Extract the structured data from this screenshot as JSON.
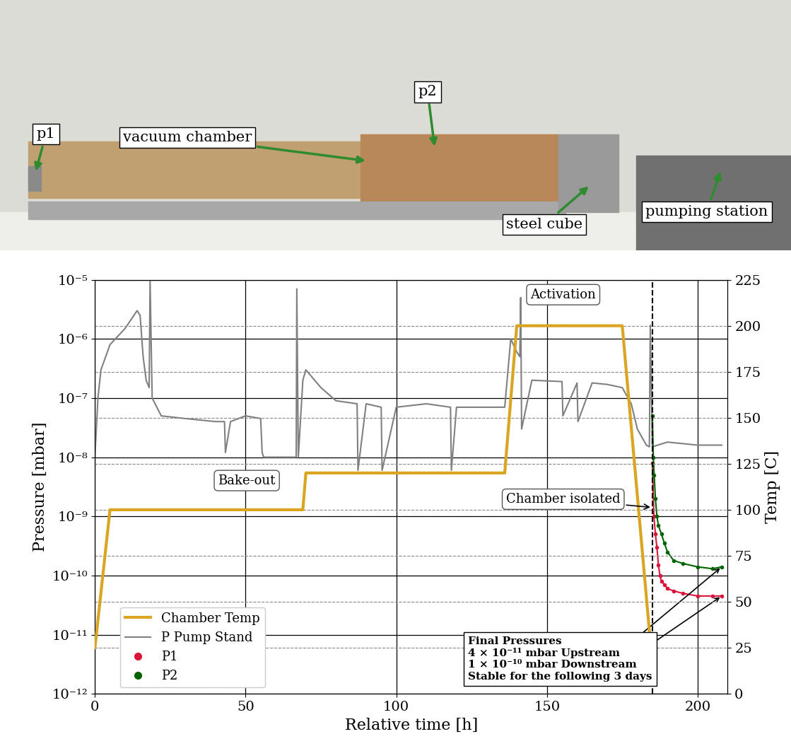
{
  "photo": {
    "labels": [
      "p1",
      "vacuum chamber",
      "p2",
      "steel cube",
      "pumping station"
    ]
  },
  "chart_data": {
    "type": "line",
    "x_label": "Relative time [h]",
    "y_label": "Pressure [mbar]",
    "y2_label": "Temp [C]",
    "xlim": [
      0,
      210
    ],
    "xticks": [
      0,
      50,
      100,
      150,
      200
    ],
    "ylim": [
      1e-12,
      1e-05
    ],
    "yticks": [
      {
        "value": 1e-12,
        "label": "10⁻¹²"
      },
      {
        "value": 1e-11,
        "label": "10⁻¹¹"
      },
      {
        "value": 1e-10,
        "label": "10⁻¹⁰"
      },
      {
        "value": 1e-09,
        "label": "10⁻⁹"
      },
      {
        "value": 1e-08,
        "label": "10⁻⁸"
      },
      {
        "value": 1e-07,
        "label": "10⁻⁷"
      },
      {
        "value": 1e-06,
        "label": "10⁻⁶"
      },
      {
        "value": 1e-05,
        "label": "10⁻⁵"
      }
    ],
    "y2lim": [
      0,
      225
    ],
    "y2ticks": [
      0,
      25,
      50,
      75,
      100,
      125,
      150,
      175,
      200,
      225
    ],
    "log": "y",
    "grid": true,
    "legend": "lower left",
    "series": [
      {
        "name": "Chamber Temp",
        "color": "#daa520",
        "type": "line",
        "axis": "y2",
        "line_style": "solid",
        "x": [
          0,
          5,
          69,
          70,
          136,
          140,
          175,
          184.5
        ],
        "values": [
          25,
          100,
          100,
          120,
          120,
          200,
          200,
          25
        ]
      },
      {
        "name": "P Pump Stand",
        "color": "#808080",
        "type": "line",
        "line_style": "solid",
        "x": [
          0,
          1,
          2,
          5,
          10,
          14,
          15,
          16,
          17,
          18,
          18.3,
          19,
          22,
          30,
          40,
          43,
          43.3,
          45,
          50,
          55,
          55.5,
          56,
          60,
          66,
          66.8,
          67,
          67.5,
          69,
          70,
          75,
          80,
          87,
          87.3,
          90,
          95,
          95.3,
          100,
          110,
          118,
          118.3,
          120,
          130,
          136,
          138,
          140,
          141,
          141.3,
          141.6,
          145,
          155,
          155.3,
          160,
          160.3,
          165,
          170,
          175,
          178,
          180,
          183,
          184,
          184.3,
          185,
          190,
          200,
          208
        ],
        "values": [
          1e-08,
          1e-07,
          3e-07,
          8e-07,
          1.5e-06,
          3e-06,
          2.5e-06,
          5e-07,
          2e-07,
          1.5e-07,
          1e-05,
          1e-07,
          5e-08,
          4.5e-08,
          4e-08,
          4e-08,
          1.2e-08,
          4e-08,
          5e-08,
          4.5e-08,
          1.2e-08,
          1e-08,
          1e-08,
          1e-08,
          1e-08,
          7e-06,
          1e-08,
          2e-07,
          3e-07,
          1.5e-07,
          9e-08,
          8e-08,
          6e-09,
          8e-08,
          7e-08,
          6e-09,
          7e-08,
          8e-08,
          7e-08,
          6e-09,
          7e-08,
          7e-08,
          7e-08,
          1e-06,
          6e-07,
          5e-07,
          5e-06,
          3e-08,
          2e-07,
          1.9e-07,
          5e-08,
          1.8e-07,
          4e-08,
          1.8e-07,
          1.7e-07,
          1.5e-07,
          8e-08,
          3e-08,
          1.6e-08,
          1.5e-08,
          1.7e-06,
          1.5e-08,
          1.8e-08,
          1.6e-08,
          1.6e-08
        ]
      },
      {
        "name": "P1",
        "color": "#dc143c",
        "type": "line",
        "marker": "o",
        "line_style": "solid",
        "x": [
          185,
          185.5,
          186,
          186.5,
          187,
          187.5,
          188,
          189,
          190,
          192,
          195,
          200,
          205,
          208
        ],
        "values": [
          8e-09,
          1e-09,
          5e-10,
          3e-10,
          1.5e-10,
          1e-10,
          8e-11,
          7e-11,
          6e-11,
          5.5e-11,
          5e-11,
          4.5e-11,
          4.5e-11,
          4.5e-11
        ]
      },
      {
        "name": "P2",
        "color": "#006400",
        "type": "line",
        "marker": "o",
        "line_style": "solid",
        "x": [
          185,
          185.3,
          185.6,
          186,
          186.5,
          187,
          188,
          189,
          190,
          192,
          195,
          200,
          205,
          208
        ],
        "values": [
          5e-08,
          1e-08,
          5e-09,
          2e-09,
          1e-09,
          7e-10,
          5e-10,
          3.5e-10,
          2.5e-10,
          1.8e-10,
          1.6e-10,
          1.4e-10,
          1.3e-10,
          1.4e-10
        ]
      }
    ],
    "annotations": [
      {
        "text": "Bake-out"
      },
      {
        "text": "Activation"
      },
      {
        "text": "Chamber isolated",
        "x": 185
      }
    ],
    "final_pressures": [
      "Final Pressures",
      "4 × 10⁻¹¹ mbar Upstream",
      "1 × 10⁻¹⁰ mbar Downstream",
      "Stable for the following 3 days"
    ]
  }
}
